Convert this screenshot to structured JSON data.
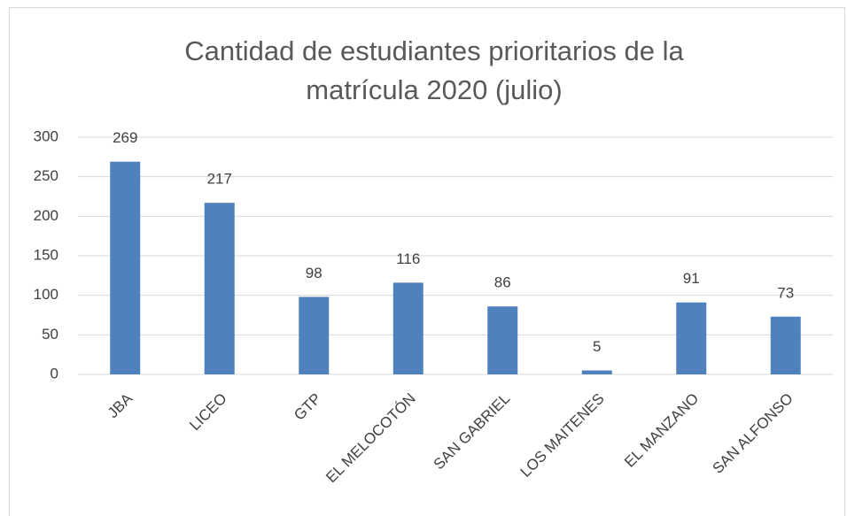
{
  "chart_data": {
    "type": "bar",
    "title": "Cantidad de estudiantes prioritarios de la matrícula 2020 (julio)",
    "categories": [
      "JBA",
      "LICEO",
      "GTP",
      "EL MELOCOTÓN",
      "SAN GABRIEL",
      "LOS MAITENES",
      "EL MANZANO",
      "SAN ALFONSO"
    ],
    "values": [
      269,
      217,
      98,
      116,
      86,
      5,
      91,
      73
    ],
    "color": "#4f81bd",
    "ylim": [
      0,
      300
    ],
    "yticks": [
      0,
      50,
      100,
      150,
      200,
      250,
      300
    ],
    "grid": true,
    "data_labels": true
  }
}
